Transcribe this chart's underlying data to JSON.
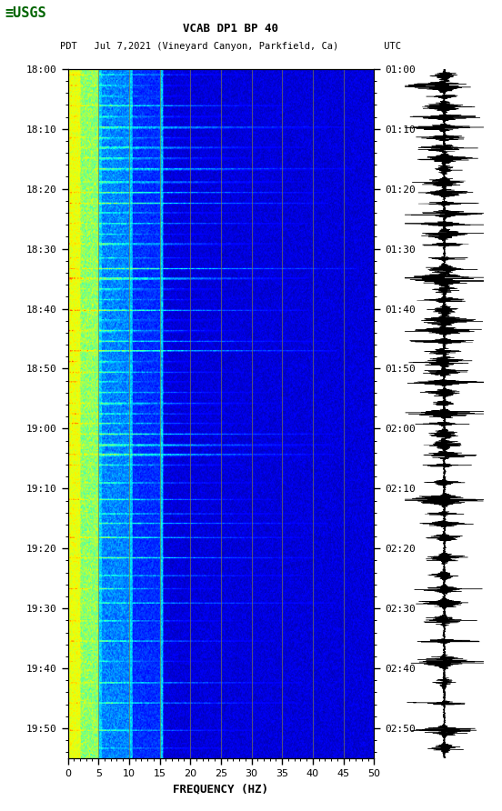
{
  "title_line1": "VCAB DP1 BP 40",
  "title_line2": "PDT   Jul 7,2021 (Vineyard Canyon, Parkfield, Ca)        UTC",
  "xlabel": "FREQUENCY (HZ)",
  "freq_min": 0,
  "freq_max": 50,
  "ytick_pdt": [
    "18:00",
    "18:10",
    "18:20",
    "18:30",
    "18:40",
    "18:50",
    "19:00",
    "19:10",
    "19:20",
    "19:30",
    "19:40",
    "19:50"
  ],
  "ytick_utc": [
    "01:00",
    "01:10",
    "01:20",
    "01:30",
    "01:40",
    "01:50",
    "02:00",
    "02:10",
    "02:20",
    "02:30",
    "02:40",
    "02:50"
  ],
  "xticks": [
    0,
    5,
    10,
    15,
    20,
    25,
    30,
    35,
    40,
    45,
    50
  ],
  "vgrid_x": [
    5,
    10,
    15,
    20,
    25,
    30,
    35,
    40,
    45
  ],
  "bg_color": "#ffffff",
  "fig_width": 5.52,
  "fig_height": 8.92,
  "dpi": 100,
  "usgs_logo_color": "#006400",
  "seed": 42,
  "n_times": 580,
  "n_freqs": 500,
  "total_minutes": 115
}
